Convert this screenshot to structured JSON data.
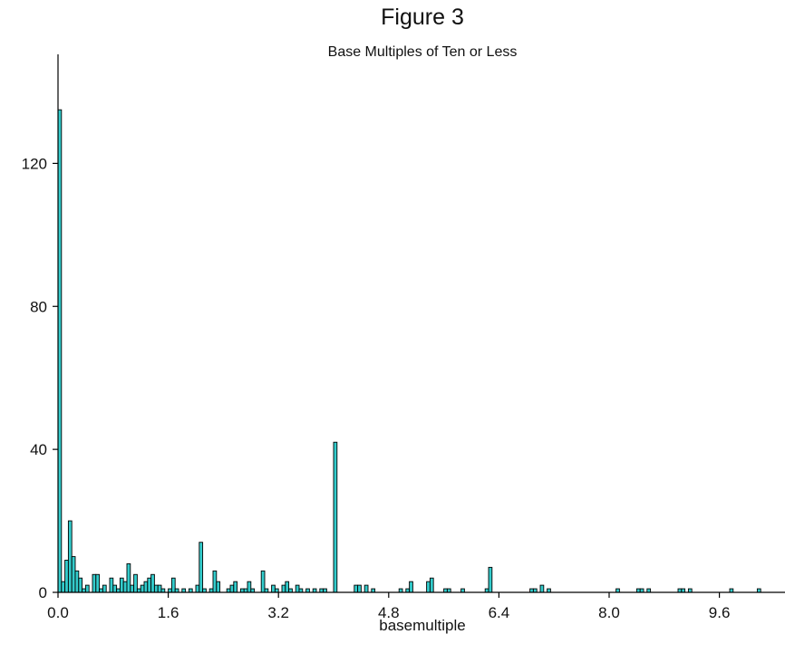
{
  "chart_data": {
    "type": "bar",
    "title": "Figure 3",
    "subtitle": "Base Multiples of Ten or Less",
    "xlabel": "basemultiple",
    "ylabel": "",
    "xlim": [
      0,
      10.5
    ],
    "ylim": [
      0,
      150
    ],
    "bin_width": 0.05,
    "x_ticks": [
      "0.0",
      "1.6",
      "3.2",
      "4.8",
      "6.4",
      "8.0",
      "9.6"
    ],
    "y_ticks": [
      "0",
      "40",
      "80",
      "120"
    ],
    "grid": false,
    "bar_fill": "#33cccc",
    "bar_stroke": "#000000",
    "bins": [
      {
        "x": 0.0,
        "y": 135
      },
      {
        "x": 0.05,
        "y": 3
      },
      {
        "x": 0.1,
        "y": 9
      },
      {
        "x": 0.15,
        "y": 20
      },
      {
        "x": 0.2,
        "y": 10
      },
      {
        "x": 0.25,
        "y": 6
      },
      {
        "x": 0.3,
        "y": 4
      },
      {
        "x": 0.35,
        "y": 1
      },
      {
        "x": 0.4,
        "y": 2
      },
      {
        "x": 0.5,
        "y": 5
      },
      {
        "x": 0.55,
        "y": 5
      },
      {
        "x": 0.6,
        "y": 1
      },
      {
        "x": 0.65,
        "y": 2
      },
      {
        "x": 0.75,
        "y": 4
      },
      {
        "x": 0.8,
        "y": 2
      },
      {
        "x": 0.85,
        "y": 1
      },
      {
        "x": 0.9,
        "y": 4
      },
      {
        "x": 0.95,
        "y": 3
      },
      {
        "x": 1.0,
        "y": 8
      },
      {
        "x": 1.05,
        "y": 2
      },
      {
        "x": 1.1,
        "y": 5
      },
      {
        "x": 1.15,
        "y": 1
      },
      {
        "x": 1.2,
        "y": 2
      },
      {
        "x": 1.25,
        "y": 3
      },
      {
        "x": 1.3,
        "y": 4
      },
      {
        "x": 1.35,
        "y": 5
      },
      {
        "x": 1.4,
        "y": 2
      },
      {
        "x": 1.45,
        "y": 2
      },
      {
        "x": 1.5,
        "y": 1
      },
      {
        "x": 1.6,
        "y": 1
      },
      {
        "x": 1.65,
        "y": 4
      },
      {
        "x": 1.7,
        "y": 1
      },
      {
        "x": 1.8,
        "y": 1
      },
      {
        "x": 1.9,
        "y": 1
      },
      {
        "x": 2.0,
        "y": 2
      },
      {
        "x": 2.05,
        "y": 14
      },
      {
        "x": 2.1,
        "y": 1
      },
      {
        "x": 2.2,
        "y": 1
      },
      {
        "x": 2.25,
        "y": 6
      },
      {
        "x": 2.3,
        "y": 3
      },
      {
        "x": 2.45,
        "y": 1
      },
      {
        "x": 2.5,
        "y": 2
      },
      {
        "x": 2.55,
        "y": 3
      },
      {
        "x": 2.65,
        "y": 1
      },
      {
        "x": 2.7,
        "y": 1
      },
      {
        "x": 2.75,
        "y": 3
      },
      {
        "x": 2.8,
        "y": 1
      },
      {
        "x": 2.95,
        "y": 6
      },
      {
        "x": 3.0,
        "y": 1
      },
      {
        "x": 3.1,
        "y": 2
      },
      {
        "x": 3.15,
        "y": 1
      },
      {
        "x": 3.25,
        "y": 2
      },
      {
        "x": 3.3,
        "y": 3
      },
      {
        "x": 3.35,
        "y": 1
      },
      {
        "x": 3.45,
        "y": 2
      },
      {
        "x": 3.5,
        "y": 1
      },
      {
        "x": 3.6,
        "y": 1
      },
      {
        "x": 3.7,
        "y": 1
      },
      {
        "x": 3.8,
        "y": 1
      },
      {
        "x": 3.85,
        "y": 1
      },
      {
        "x": 4.0,
        "y": 42
      },
      {
        "x": 4.3,
        "y": 2
      },
      {
        "x": 4.35,
        "y": 2
      },
      {
        "x": 4.45,
        "y": 2
      },
      {
        "x": 4.55,
        "y": 1
      },
      {
        "x": 4.95,
        "y": 1
      },
      {
        "x": 5.05,
        "y": 1
      },
      {
        "x": 5.1,
        "y": 3
      },
      {
        "x": 5.35,
        "y": 3
      },
      {
        "x": 5.4,
        "y": 4
      },
      {
        "x": 5.6,
        "y": 1
      },
      {
        "x": 5.65,
        "y": 1
      },
      {
        "x": 5.85,
        "y": 1
      },
      {
        "x": 6.2,
        "y": 1
      },
      {
        "x": 6.25,
        "y": 7
      },
      {
        "x": 6.85,
        "y": 1
      },
      {
        "x": 6.9,
        "y": 1
      },
      {
        "x": 7.0,
        "y": 2
      },
      {
        "x": 7.1,
        "y": 1
      },
      {
        "x": 8.1,
        "y": 1
      },
      {
        "x": 8.4,
        "y": 1
      },
      {
        "x": 8.45,
        "y": 1
      },
      {
        "x": 8.55,
        "y": 1
      },
      {
        "x": 9.0,
        "y": 1
      },
      {
        "x": 9.05,
        "y": 1
      },
      {
        "x": 9.15,
        "y": 1
      },
      {
        "x": 9.75,
        "y": 1
      },
      {
        "x": 10.15,
        "y": 1
      }
    ]
  }
}
